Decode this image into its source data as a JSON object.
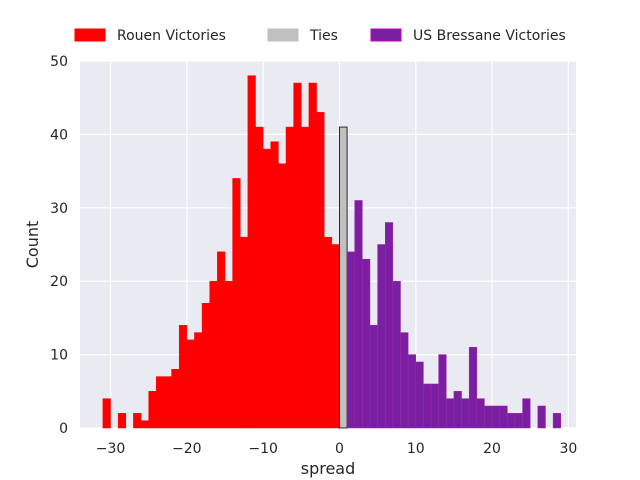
{
  "chart_data": {
    "type": "bar",
    "xlabel": "spread",
    "ylabel": "Count",
    "xlim": [
      -34,
      31
    ],
    "ylim": [
      0,
      50
    ],
    "xticks": [
      -30,
      -20,
      -10,
      0,
      10,
      20,
      30
    ],
    "yticks": [
      0,
      10,
      20,
      30,
      40,
      50
    ],
    "grid": true,
    "legend_position": "top",
    "colors": {
      "rouen": "#ff0000",
      "ties": "#c0c0c0",
      "bressane": "#7b1fa2",
      "plot_bg": "#eaeaf2",
      "grid": "#ffffff"
    },
    "legend": [
      {
        "label": "Rouen Victories",
        "color": "#ff0000",
        "edge": "#ff0000"
      },
      {
        "label": "Ties",
        "color": "#c0c0c0",
        "edge": "#c0c0c0"
      },
      {
        "label": "US Bressane Victories",
        "color": "#7b1fa2",
        "edge": "#c000c0"
      }
    ],
    "series": [
      {
        "name": "Rouen Victories",
        "bins": [
          [
            -31,
            4
          ],
          [
            -30,
            0
          ],
          [
            -29,
            2
          ],
          [
            -28,
            0
          ],
          [
            -27,
            2
          ],
          [
            -26,
            1
          ],
          [
            -25,
            5
          ],
          [
            -24,
            7
          ],
          [
            -23,
            7
          ],
          [
            -22,
            8
          ],
          [
            -21,
            14
          ],
          [
            -20,
            12
          ],
          [
            -19,
            13
          ],
          [
            -18,
            17
          ],
          [
            -17,
            20
          ],
          [
            -16,
            24
          ],
          [
            -15,
            20
          ],
          [
            -14,
            34
          ],
          [
            -13,
            26
          ],
          [
            -12,
            48
          ],
          [
            -11,
            41
          ],
          [
            -10,
            38
          ],
          [
            -9,
            39
          ],
          [
            -8,
            36
          ],
          [
            -7,
            41
          ],
          [
            -6,
            47
          ],
          [
            -5,
            41
          ],
          [
            -4,
            47
          ],
          [
            -3,
            43
          ],
          [
            -2,
            26
          ],
          [
            -1,
            25
          ]
        ]
      },
      {
        "name": "Ties",
        "bins": [
          [
            0,
            41
          ]
        ]
      },
      {
        "name": "US Bressane Victories",
        "bins": [
          [
            1,
            24
          ],
          [
            2,
            31
          ],
          [
            3,
            23
          ],
          [
            4,
            14
          ],
          [
            5,
            25
          ],
          [
            6,
            28
          ],
          [
            7,
            20
          ],
          [
            8,
            13
          ],
          [
            9,
            10
          ],
          [
            10,
            9
          ],
          [
            11,
            6
          ],
          [
            12,
            6
          ],
          [
            13,
            10
          ],
          [
            14,
            4
          ],
          [
            15,
            5
          ],
          [
            16,
            4
          ],
          [
            17,
            11
          ],
          [
            18,
            4
          ],
          [
            19,
            3
          ],
          [
            20,
            3
          ],
          [
            21,
            3
          ],
          [
            22,
            2
          ],
          [
            23,
            2
          ],
          [
            24,
            4
          ],
          [
            25,
            0
          ],
          [
            26,
            3
          ],
          [
            27,
            0
          ],
          [
            28,
            2
          ]
        ]
      }
    ]
  }
}
